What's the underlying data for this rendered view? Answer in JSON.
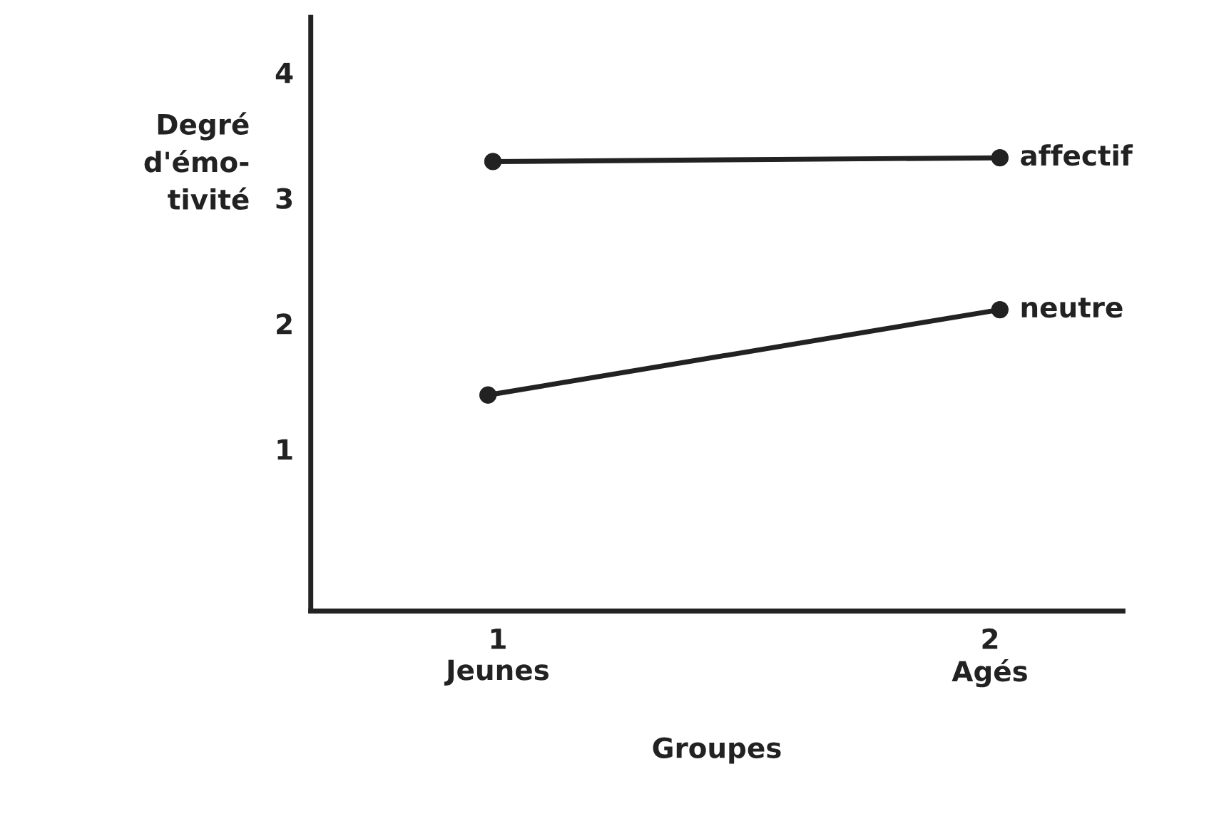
{
  "chart_data": {
    "type": "line",
    "xlabel": "Groupes",
    "ylabel": "Degré\nd'émo-\ntivité",
    "xlim": [
      0.62,
      2.27
    ],
    "ylim": [
      -0.29,
      4.44
    ],
    "xticks": [
      {
        "value": 1,
        "label": "1\nJeunes"
      },
      {
        "value": 2,
        "label": "2\nAgés"
      }
    ],
    "yticks": [
      1,
      2,
      3,
      4
    ],
    "series": [
      {
        "name": "affectif",
        "color": "#222222",
        "x": [
          0.99,
          2.02
        ],
        "values": [
          3.29,
          3.32
        ]
      },
      {
        "name": "neutre",
        "color": "#222222",
        "x": [
          0.98,
          2.02
        ],
        "values": [
          1.43,
          2.11
        ]
      }
    ],
    "marker": "circle",
    "line_style": "solid",
    "grid": false,
    "legend": false
  }
}
